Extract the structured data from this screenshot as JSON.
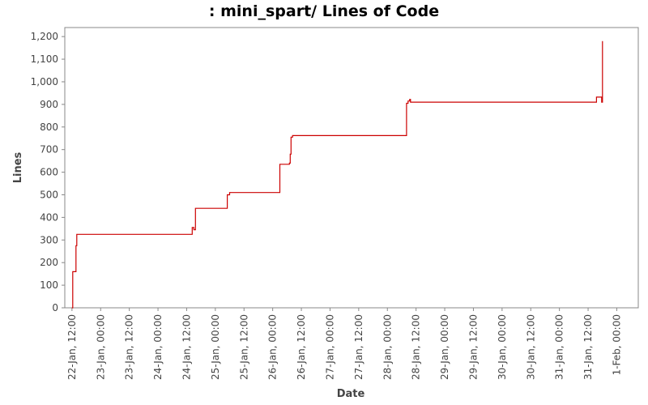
{
  "chart_data": {
    "type": "line",
    "title": ": mini_spart/ Lines of Code",
    "xlabel": "Date",
    "ylabel": "Lines",
    "ylim": [
      0,
      1240
    ],
    "xlim": [
      "2007-01-22 09:00",
      "2007-02-01 09:00"
    ],
    "grid": false,
    "legend": "none",
    "line_color": "#cc0000",
    "y_ticks": [
      "0",
      "100",
      "200",
      "300",
      "400",
      "500",
      "600",
      "700",
      "800",
      "900",
      "1,000",
      "1,100",
      "1,200"
    ],
    "x_ticks": [
      "22-Jan, 12:00",
      "23-Jan, 00:00",
      "23-Jan, 12:00",
      "24-Jan, 00:00",
      "24-Jan, 12:00",
      "25-Jan, 00:00",
      "25-Jan, 12:00",
      "26-Jan, 00:00",
      "26-Jan, 12:00",
      "27-Jan, 00:00",
      "27-Jan, 12:00",
      "28-Jan, 00:00",
      "28-Jan, 12:00",
      "29-Jan, 00:00",
      "29-Jan, 12:00",
      "30-Jan, 00:00",
      "30-Jan, 12:00",
      "31-Jan, 00:00",
      "31-Jan, 12:00",
      "1-Feb, 00:00"
    ],
    "series": [
      {
        "x": [
          "2007-01-22 12:00",
          "2007-01-22 12:20",
          "2007-01-22 13:40",
          "2007-01-22 14:00",
          "2007-01-24 13:30",
          "2007-01-24 14:20",
          "2007-01-24 15:00",
          "2007-01-24 15:40",
          "2007-01-25 00:00",
          "2007-01-25 05:00",
          "2007-01-25 06:00",
          "2007-01-26 00:00",
          "2007-01-26 03:00",
          "2007-01-26 07:00",
          "2007-01-26 07:20",
          "2007-01-26 07:40",
          "2007-01-26 08:20",
          "2007-01-28 07:20",
          "2007-01-28 08:00",
          "2007-01-28 08:40",
          "2007-01-28 09:20",
          "2007-01-28 09:40",
          "2007-01-31 14:20",
          "2007-01-31 15:30",
          "2007-01-31 17:40",
          "2007-01-31 18:00"
        ],
        "values": [
          0,
          160,
          275,
          325,
          325,
          355,
          345,
          440,
          440,
          500,
          510,
          510,
          635,
          640,
          680,
          755,
          762,
          762,
          905,
          915,
          922,
          910,
          910,
          932,
          910,
          1180
        ]
      }
    ]
  }
}
